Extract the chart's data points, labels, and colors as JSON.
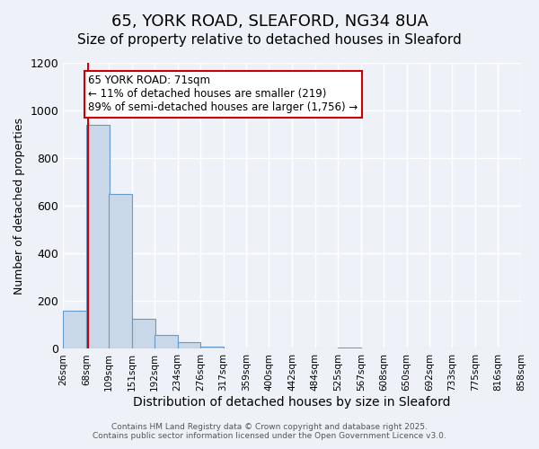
{
  "title": "65, YORK ROAD, SLEAFORD, NG34 8UA",
  "subtitle": "Size of property relative to detached houses in Sleaford",
  "xlabel": "Distribution of detached houses by size in Sleaford",
  "ylabel": "Number of detached properties",
  "bin_edges": [
    26,
    68,
    109,
    151,
    192,
    234,
    276,
    317,
    359,
    400,
    442,
    484,
    525,
    567,
    608,
    650,
    692,
    733,
    775,
    816,
    858
  ],
  "bin_labels": [
    "26sqm",
    "68sqm",
    "109sqm",
    "151sqm",
    "192sqm",
    "234sqm",
    "276sqm",
    "317sqm",
    "359sqm",
    "400sqm",
    "442sqm",
    "484sqm",
    "525sqm",
    "567sqm",
    "608sqm",
    "650sqm",
    "692sqm",
    "733sqm",
    "775sqm",
    "816sqm",
    "858sqm"
  ],
  "bar_heights": [
    160,
    940,
    650,
    125,
    58,
    28,
    8,
    0,
    0,
    0,
    0,
    0,
    5,
    0,
    0,
    0,
    0,
    0,
    0,
    0
  ],
  "bar_color": "#c8d8e8",
  "bar_edge_color": "#6699cc",
  "property_line_x": 71,
  "property_line_color": "#cc0000",
  "annotation_text": "65 YORK ROAD: 71sqm\n← 11% of detached houses are smaller (219)\n89% of semi-detached houses are larger (1,756) →",
  "annotation_box_color": "#ffffff",
  "annotation_box_edge_color": "#cc0000",
  "ylim": [
    0,
    1200
  ],
  "yticks": [
    0,
    200,
    400,
    600,
    800,
    1000,
    1200
  ],
  "background_color": "#eef2f8",
  "plot_background_color": "#eef2f8",
  "grid_color": "#ffffff",
  "footer_text": "Contains HM Land Registry data © Crown copyright and database right 2025.\nContains public sector information licensed under the Open Government Licence v3.0.",
  "title_fontsize": 13,
  "subtitle_fontsize": 11,
  "xlabel_fontsize": 10,
  "ylabel_fontsize": 9,
  "annotation_fontsize": 8.5
}
